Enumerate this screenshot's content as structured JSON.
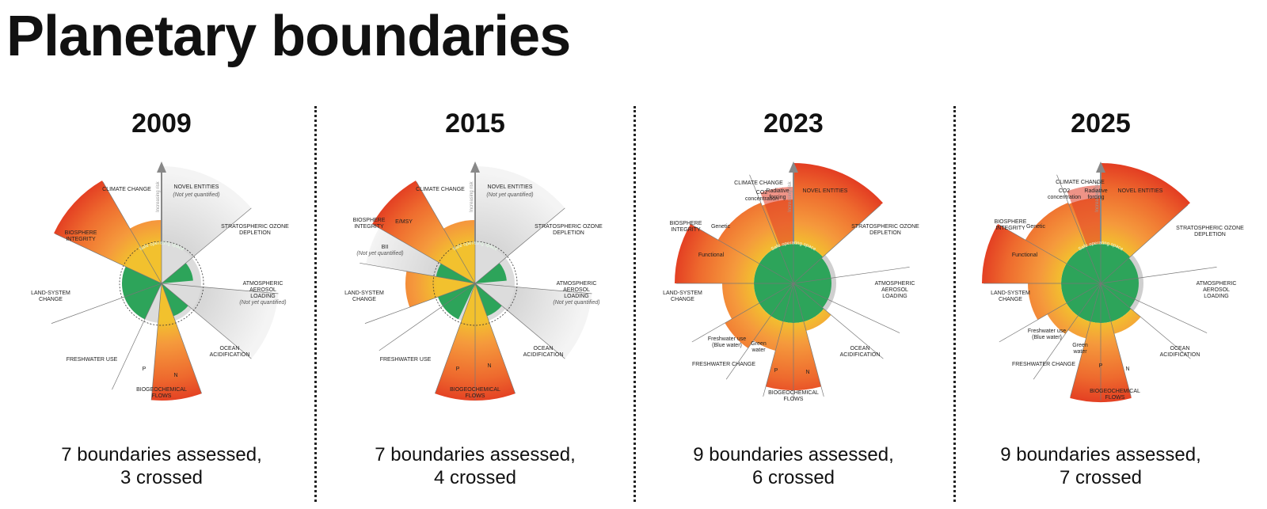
{
  "title": "Planetary boundaries",
  "safe_label": "Safe operating space",
  "axis_label": "Increasing risk",
  "colors": {
    "safe": "#2da45a",
    "zone_orange": "#f5993c",
    "high_red": "#e03a24",
    "not_quantified": "#e3e3e3",
    "divider": "#222222"
  },
  "panels": [
    {
      "year": "2009",
      "summary_line1": "7 boundaries assessed,",
      "summary_line2": "3 crossed",
      "labels": [
        {
          "lines": [
            "CLIMATE CHANGE"
          ]
        },
        {
          "lines": [
            "NOVEL ENTITIES"
          ]
        },
        {
          "lines": [
            "(Not yet quantified)"
          ],
          "italic": true
        },
        {
          "lines": [
            "STRATOSPHERIC OZONE",
            "DEPLETION"
          ]
        },
        {
          "lines": [
            "ATMOSPHERIC",
            "AEROSOL",
            "LOADING"
          ]
        },
        {
          "lines": [
            "(Not yet quantified)"
          ],
          "italic": true
        },
        {
          "lines": [
            "OCEAN",
            "ACIDIFICATION"
          ]
        },
        {
          "lines": [
            "BIOGEOCHEMICAL",
            "FLOWS"
          ]
        },
        {
          "lines": [
            "N"
          ]
        },
        {
          "lines": [
            "P"
          ]
        },
        {
          "lines": [
            "FRESHWATER USE"
          ]
        },
        {
          "lines": [
            "LAND-SYSTEM",
            "CHANGE"
          ]
        },
        {
          "lines": [
            "BIOSPHERE",
            "INTEGRITY"
          ]
        }
      ]
    },
    {
      "year": "2015",
      "summary_line1": "7 boundaries assessed,",
      "summary_line2": "4 crossed",
      "labels": [
        {
          "lines": [
            "CLIMATE CHANGE"
          ]
        },
        {
          "lines": [
            "NOVEL ENTITIES"
          ]
        },
        {
          "lines": [
            "(Not yet quantified)"
          ],
          "italic": true
        },
        {
          "lines": [
            "STRATOSPHERIC OZONE",
            "DEPLETION"
          ]
        },
        {
          "lines": [
            "ATMOSPHERIC",
            "AEROSOL",
            "LOADING"
          ]
        },
        {
          "lines": [
            "(Not yet quantified)"
          ],
          "italic": true
        },
        {
          "lines": [
            "OCEAN",
            "ACIDIFICATION"
          ]
        },
        {
          "lines": [
            "BIOGEOCHEMICAL",
            "FLOWS"
          ]
        },
        {
          "lines": [
            "N"
          ]
        },
        {
          "lines": [
            "P"
          ]
        },
        {
          "lines": [
            "FRESHWATER USE"
          ]
        },
        {
          "lines": [
            "LAND-SYSTEM",
            "CHANGE"
          ]
        },
        {
          "lines": [
            "BIOSPHERE",
            "INTEGRITY"
          ]
        },
        {
          "lines": [
            "E/MSY"
          ]
        },
        {
          "lines": [
            "BII"
          ]
        },
        {
          "lines": [
            "(Not yet quantified)"
          ],
          "italic": true
        }
      ]
    },
    {
      "year": "2023",
      "summary_line1": "9 boundaries assessed,",
      "summary_line2": "6 crossed",
      "labels": [
        {
          "lines": [
            "CLIMATE CHANGE"
          ]
        },
        {
          "lines": [
            "CO2",
            "concentration"
          ]
        },
        {
          "lines": [
            "Radiative",
            "forcing"
          ]
        },
        {
          "lines": [
            "NOVEL ENTITIES"
          ]
        },
        {
          "lines": [
            "STRATOSPHERIC OZONE",
            "DEPLETION"
          ]
        },
        {
          "lines": [
            "ATMOSPHERIC",
            "AEROSOL",
            "LOADING"
          ]
        },
        {
          "lines": [
            "OCEAN",
            "ACIDIFICATION"
          ]
        },
        {
          "lines": [
            "BIOGEOCHEMICAL",
            "FLOWS"
          ]
        },
        {
          "lines": [
            "N"
          ]
        },
        {
          "lines": [
            "P"
          ]
        },
        {
          "lines": [
            "Green",
            "water"
          ]
        },
        {
          "lines": [
            "Freshwater use",
            "(Blue water)"
          ]
        },
        {
          "lines": [
            "FRESHWATER CHANGE"
          ]
        },
        {
          "lines": [
            "LAND-SYSTEM",
            "CHANGE"
          ]
        },
        {
          "lines": [
            "BIOSPHERE",
            "INTEGRITY"
          ]
        },
        {
          "lines": [
            "Genetic"
          ]
        },
        {
          "lines": [
            "Functional"
          ]
        }
      ]
    },
    {
      "year": "2025",
      "summary_line1": "9 boundaries assessed,",
      "summary_line2": "7 crossed",
      "labels": [
        {
          "lines": [
            "CLIMATE CHANGE"
          ]
        },
        {
          "lines": [
            "CO2",
            "concentration"
          ]
        },
        {
          "lines": [
            "Radiative",
            "forcing"
          ]
        },
        {
          "lines": [
            "NOVEL ENTITIES"
          ]
        },
        {
          "lines": [
            "STRATOSPHERIC OZONE",
            "DEPLETION"
          ]
        },
        {
          "lines": [
            "ATMOSPHERIC",
            "AEROSOL",
            "LOADING"
          ]
        },
        {
          "lines": [
            "OCEAN",
            "ACIDIFICATION"
          ]
        },
        {
          "lines": [
            "BIOGEOCHEMICAL",
            "FLOWS"
          ]
        },
        {
          "lines": [
            "N"
          ]
        },
        {
          "lines": [
            "P"
          ]
        },
        {
          "lines": [
            "Green",
            "water"
          ]
        },
        {
          "lines": [
            "Freshwater use",
            "(Blue water)"
          ]
        },
        {
          "lines": [
            "FRESHWATER CHANGE"
          ]
        },
        {
          "lines": [
            "LAND-SYSTEM",
            "CHANGE"
          ]
        },
        {
          "lines": [
            "BIOSPHERE",
            "INTEGRITY"
          ]
        },
        {
          "lines": [
            "Genetic"
          ]
        },
        {
          "lines": [
            "Functional"
          ]
        }
      ]
    }
  ]
}
